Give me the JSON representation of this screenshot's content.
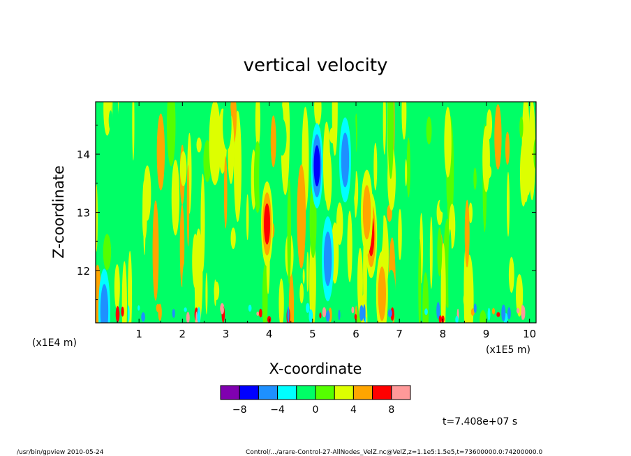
{
  "chart_data": {
    "type": "heatmap",
    "title": "vertical velocity",
    "xlabel": "X-coordinate",
    "ylabel": "Z-coordinate",
    "x_multiplier": "(x1E5 m)",
    "y_multiplier": "(x1E4 m)",
    "xlim": [
      0.0,
      10.15
    ],
    "ylim": [
      11.1,
      14.9
    ],
    "x_ticks": [
      1,
      2,
      3,
      4,
      5,
      6,
      7,
      8,
      9,
      10
    ],
    "y_ticks": [
      12,
      13,
      14
    ],
    "colorbar": {
      "colors": [
        "#8000b0",
        "#0000ff",
        "#1e90ff",
        "#00ffff",
        "#00ff66",
        "#55ff00",
        "#ddff00",
        "#ffa500",
        "#ff0000",
        "#ff9999"
      ],
      "tick_labels": [
        "-8",
        "-4",
        "0",
        "4",
        "8"
      ]
    },
    "time_label": "t=7.408e+07 s",
    "features": [
      {
        "x": 5.1,
        "z": 13.8,
        "value": -8
      },
      {
        "x": 5.35,
        "z": 12.2,
        "value": -6
      },
      {
        "x": 5.75,
        "z": 13.9,
        "value": -6
      },
      {
        "x": 3.95,
        "z": 12.8,
        "value": 7
      },
      {
        "x": 6.35,
        "z": 12.6,
        "value": 8
      },
      {
        "x": 6.25,
        "z": 13.0,
        "value": 5
      },
      {
        "x": 2.75,
        "z": 14.2,
        "value": 3
      },
      {
        "x": 0.2,
        "z": 11.3,
        "value": -6
      },
      {
        "x": 6.6,
        "z": 11.6,
        "value": 5
      }
    ]
  },
  "footer": {
    "left": "/usr/bin/gpview   2010-05-24",
    "right": "Control/.../arare-Control-27-AllNodes_VelZ.nc@VelZ,z=1.1e5:1.5e5,t=73600000.0:74200000.0"
  }
}
